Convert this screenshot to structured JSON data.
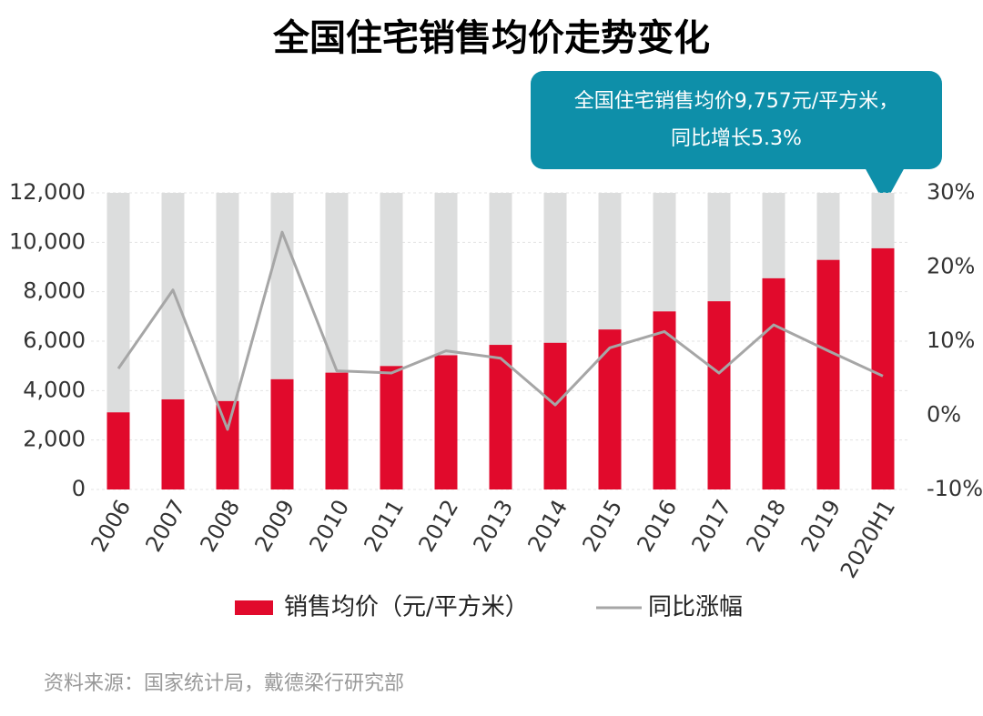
{
  "chart_data": {
    "type": "bar-line",
    "title": "全国住宅销售均价走势变化",
    "annotation": [
      "全国住宅销售均价9,757元/平方米，",
      "同比增长5.3%"
    ],
    "source": "资料来源：国家统计局，戴德梁行研究部",
    "categories": [
      "2006",
      "2007",
      "2008",
      "2009",
      "2010",
      "2011",
      "2012",
      "2013",
      "2014",
      "2015",
      "2016",
      "2017",
      "2018",
      "2019",
      "2020H1"
    ],
    "series": [
      {
        "name": "销售均价（元/平方米）",
        "color": "#e10a2c",
        "type": "bar",
        "values": [
          3119,
          3645,
          3576,
          4459,
          4725,
          4993,
          5430,
          5850,
          5933,
          6472,
          7203,
          7614,
          8544,
          9287,
          9757
        ]
      },
      {
        "name": "同比涨幅",
        "color": "#a6a6a6",
        "type": "line",
        "axis": "y2",
        "values": [
          6.3,
          16.9,
          -1.9,
          24.7,
          6.0,
          5.7,
          8.7,
          7.7,
          1.4,
          9.1,
          11.3,
          5.7,
          12.2,
          8.7,
          5.3
        ]
      }
    ],
    "ylim": [
      0,
      12000
    ],
    "yticks": [
      0,
      {
        "value": 2000,
        "label": "2,000"
      },
      {
        "value": 4000,
        "label": "4,000"
      },
      {
        "value": 6000,
        "label": "6,000"
      },
      {
        "value": 8000,
        "label": "8,000"
      },
      {
        "value": 10000,
        "label": "10,000"
      },
      {
        "value": 12000,
        "label": "12,000"
      }
    ],
    "y2lim": [
      -10,
      30
    ],
    "y2ticks": [
      {
        "value": -10,
        "label": "-10%"
      },
      {
        "value": 0,
        "label": "0%"
      },
      {
        "value": 10,
        "label": "10%"
      },
      {
        "value": 20,
        "label": "20%"
      },
      {
        "value": 30,
        "label": "30%"
      }
    ],
    "grid": true
  }
}
